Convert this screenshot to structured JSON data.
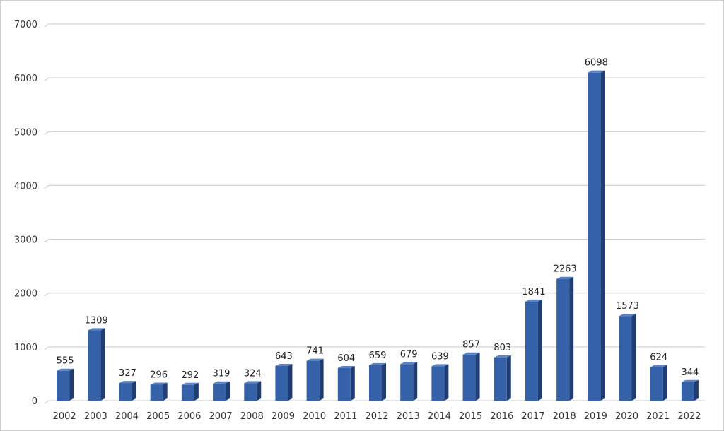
{
  "chart_data": {
    "type": "bar",
    "categories": [
      "2002",
      "2003",
      "2004",
      "2005",
      "2006",
      "2007",
      "2008",
      "2009",
      "2010",
      "2011",
      "2012",
      "2013",
      "2014",
      "2015",
      "2016",
      "2017",
      "2018",
      "2019",
      "2020",
      "2021",
      "2022"
    ],
    "values": [
      555,
      1309,
      327,
      296,
      292,
      319,
      324,
      643,
      741,
      604,
      659,
      679,
      639,
      857,
      803,
      1841,
      2263,
      6098,
      1573,
      624,
      344
    ],
    "title": "",
    "xlabel": "",
    "ylabel": "",
    "ylim": [
      0,
      7000
    ],
    "yticks": [
      0,
      1000,
      2000,
      3000,
      4000,
      5000,
      6000,
      7000
    ],
    "grid": true,
    "legend": "none",
    "data_labels": true,
    "style": "3d-column",
    "colors": {
      "bar_front": "#3561a8",
      "bar_side": "#1f3d73",
      "bar_top": "#5b82c4",
      "grid": "#c9c9c9",
      "text": "#333333"
    }
  }
}
